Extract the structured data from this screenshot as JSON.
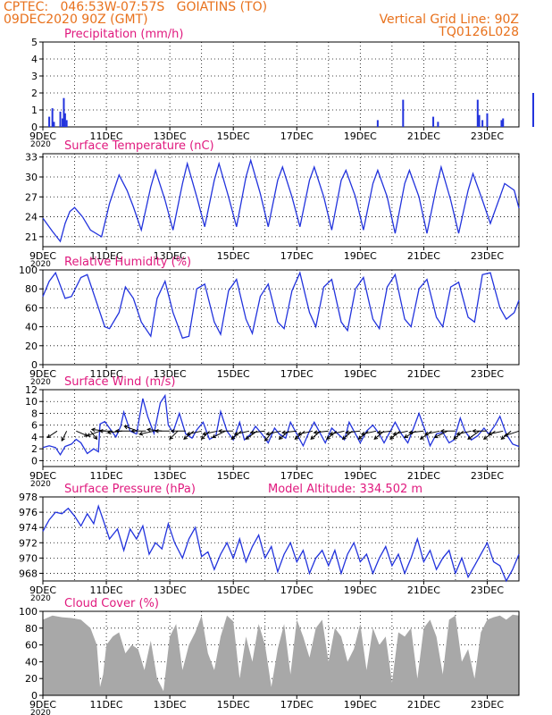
{
  "header": {
    "line1": "CPTEC:   046:53W-07:57S   GOIATINS (TO)",
    "line2": "09DEC2020 90Z (GMT)",
    "right1": "Vertical Grid Line: 90Z",
    "right2": "TQ0126L028"
  },
  "colors": {
    "header": "#e8711c",
    "title": "#e0197e",
    "series": "#2233dd",
    "cloud": "#a8a8a8",
    "arrow": "#000000",
    "grid": "#000000"
  },
  "x_ticks": [
    "9DEC",
    "11DEC",
    "13DEC",
    "15DEC",
    "17DEC",
    "19DEC",
    "21DEC",
    "23DEC"
  ],
  "x_subtick": "2020",
  "chart_data": [
    {
      "type": "bar",
      "title": "Precipitation (mm/h)",
      "ylim": [
        0,
        5
      ],
      "yticks": [
        0,
        1,
        2,
        3,
        4,
        5
      ],
      "x_days": [
        0.2,
        0.3,
        0.35,
        0.55,
        0.62,
        0.66,
        0.7,
        0.75,
        10.55,
        11.35,
        12.3,
        12.45,
        13.7,
        13.75,
        13.85,
        14.0,
        14.45,
        14.5,
        15.45
      ],
      "values": [
        0.6,
        1.1,
        0.3,
        0.9,
        0.5,
        1.7,
        0.8,
        0.4,
        0.4,
        1.6,
        0.6,
        0.3,
        1.6,
        0.7,
        0.4,
        0.8,
        0.4,
        0.5,
        2.0
      ]
    },
    {
      "type": "line",
      "title": "Surface Temperature (nC)",
      "ylim": [
        19.5,
        33.5
      ],
      "yticks": [
        21,
        24,
        27,
        30,
        33
      ],
      "x_days": [
        0.0,
        0.3,
        0.55,
        0.7,
        0.85,
        1.0,
        1.25,
        1.5,
        1.85,
        2.1,
        2.4,
        2.65,
        2.85,
        3.1,
        3.4,
        3.55,
        3.85,
        4.1,
        4.4,
        4.55,
        4.85,
        5.1,
        5.4,
        5.55,
        5.85,
        6.1,
        6.4,
        6.55,
        6.85,
        7.1,
        7.4,
        7.55,
        7.85,
        8.1,
        8.4,
        8.55,
        8.85,
        9.1,
        9.4,
        9.55,
        9.85,
        10.1,
        10.4,
        10.55,
        10.85,
        11.1,
        11.4,
        11.55,
        11.85,
        12.1,
        12.4,
        12.55,
        12.85,
        13.1,
        13.4,
        13.55,
        13.85,
        14.1,
        14.4,
        14.55,
        14.85,
        15.0
      ],
      "values": [
        23.8,
        21.8,
        20.3,
        23.0,
        24.8,
        25.4,
        24.0,
        22.0,
        21.0,
        26.0,
        30.3,
        28.0,
        25.5,
        22.0,
        28.5,
        31.0,
        26.5,
        22.0,
        29.0,
        32.0,
        27.0,
        22.5,
        29.5,
        32.0,
        27.0,
        22.5,
        30.0,
        32.5,
        27.5,
        22.5,
        29.5,
        31.5,
        27.0,
        22.5,
        29.5,
        31.5,
        27.0,
        22.0,
        29.5,
        31.0,
        27.0,
        22.0,
        29.0,
        31.0,
        27.0,
        21.5,
        29.0,
        31.0,
        27.0,
        21.5,
        28.5,
        31.5,
        26.5,
        21.5,
        28.0,
        30.5,
        26.5,
        23.0,
        27.0,
        29.0,
        28.0,
        25.3
      ]
    },
    {
      "type": "line",
      "title": "Relative Humidity (%)",
      "ylim": [
        0,
        100
      ],
      "yticks": [
        0,
        20,
        40,
        60,
        80,
        100
      ],
      "x_days": [
        0.0,
        0.2,
        0.4,
        0.7,
        0.9,
        1.2,
        1.4,
        1.7,
        1.95,
        2.1,
        2.4,
        2.6,
        2.85,
        3.1,
        3.4,
        3.6,
        3.85,
        4.1,
        4.4,
        4.6,
        4.85,
        5.1,
        5.4,
        5.6,
        5.85,
        6.1,
        6.4,
        6.6,
        6.85,
        7.1,
        7.4,
        7.6,
        7.85,
        8.1,
        8.4,
        8.6,
        8.85,
        9.1,
        9.4,
        9.6,
        9.85,
        10.1,
        10.4,
        10.6,
        10.85,
        11.1,
        11.4,
        11.6,
        11.85,
        12.1,
        12.4,
        12.6,
        12.85,
        13.1,
        13.4,
        13.6,
        13.85,
        14.1,
        14.4,
        14.6,
        14.85,
        15.0
      ],
      "values": [
        72,
        88,
        97,
        70,
        72,
        92,
        95,
        65,
        40,
        38,
        55,
        82,
        70,
        45,
        30,
        70,
        88,
        55,
        28,
        30,
        80,
        85,
        45,
        32,
        78,
        90,
        48,
        33,
        72,
        85,
        45,
        38,
        78,
        97,
        55,
        40,
        82,
        90,
        45,
        36,
        80,
        92,
        48,
        38,
        82,
        95,
        48,
        40,
        80,
        90,
        50,
        40,
        82,
        87,
        50,
        45,
        95,
        97,
        60,
        48,
        55,
        68
      ]
    },
    {
      "type": "line",
      "title": "Surface Wind (m/s)",
      "ylim": [
        -1,
        12
      ],
      "yticks": [
        0,
        2,
        4,
        6,
        8,
        10,
        12
      ],
      "x_days": [
        0.0,
        0.2,
        0.4,
        0.55,
        0.7,
        0.9,
        1.05,
        1.2,
        1.4,
        1.6,
        1.75,
        1.8,
        1.95,
        2.1,
        2.3,
        2.45,
        2.55,
        2.75,
        2.95,
        3.15,
        3.3,
        3.5,
        3.7,
        3.85,
        3.95,
        4.1,
        4.3,
        4.5,
        4.7,
        4.85,
        5.05,
        5.25,
        5.45,
        5.6,
        5.8,
        6.0,
        6.2,
        6.35,
        6.55,
        6.7,
        6.9,
        7.1,
        7.3,
        7.45,
        7.65,
        7.8,
        8.0,
        8.2,
        8.4,
        8.55,
        8.75,
        8.9,
        9.1,
        9.3,
        9.5,
        9.65,
        9.85,
        10.0,
        10.2,
        10.4,
        10.6,
        10.75,
        10.95,
        11.1,
        11.3,
        11.5,
        11.7,
        11.85,
        12.05,
        12.2,
        12.4,
        12.6,
        12.8,
        12.95,
        13.15,
        13.3,
        13.5,
        13.7,
        13.9,
        14.05,
        14.25,
        14.4,
        14.6,
        14.8,
        15.0
      ],
      "values": [
        2.2,
        2.5,
        2.2,
        1.0,
        2.4,
        2.8,
        3.6,
        3.0,
        1.2,
        2.0,
        1.5,
        6.2,
        6.6,
        5.5,
        4.0,
        5.8,
        8.2,
        5.0,
        4.5,
        10.5,
        7.5,
        4.6,
        9.8,
        11.0,
        6.0,
        4.8,
        8.0,
        4.5,
        3.8,
        5.2,
        6.5,
        3.6,
        4.2,
        8.3,
        5.0,
        3.5,
        6.5,
        3.5,
        4.5,
        5.8,
        4.5,
        3.0,
        5.5,
        4.5,
        3.8,
        6.5,
        4.5,
        2.5,
        5.0,
        6.5,
        4.5,
        3.0,
        5.5,
        4.5,
        3.5,
        6.5,
        4.5,
        3.0,
        5.0,
        6.0,
        4.5,
        3.0,
        5.0,
        6.5,
        4.5,
        3.0,
        5.8,
        8.0,
        5.0,
        2.5,
        4.5,
        4.8,
        3.0,
        3.5,
        7.2,
        5.0,
        3.5,
        4.2,
        5.5,
        4.5,
        6.0,
        7.5,
        4.5,
        2.8,
        2.4
      ],
      "arrows": {
        "x_days": [
          0.45,
          0.75,
          1.05,
          1.5,
          1.8,
          2.0,
          2.2,
          2.5,
          2.75,
          3.0,
          3.25,
          3.5,
          3.75,
          4.0,
          4.25,
          4.5,
          4.75,
          5.0,
          5.25,
          5.5,
          5.75,
          6.0,
          6.25,
          6.5,
          6.75,
          7.0,
          7.25,
          7.5,
          7.75,
          8.0,
          8.25,
          8.5,
          8.75,
          9.0,
          9.25,
          9.5,
          9.75,
          10.0,
          10.25,
          10.5,
          10.75,
          11.0,
          11.25,
          11.5,
          11.75,
          12.0,
          12.25,
          12.5,
          12.75,
          13.0,
          13.25,
          13.5,
          13.75,
          14.0,
          14.25,
          14.5,
          14.75,
          15.0
        ],
        "dx": [
          -0.6,
          -0.3,
          0.7,
          0.4,
          -0.8,
          -0.9,
          -0.8,
          -0.9,
          -0.9,
          -0.85,
          -0.9,
          -0.9,
          -0.9,
          -0.9,
          -0.5,
          -0.9,
          -0.6,
          -0.9,
          -0.5,
          -0.9,
          -0.8,
          -0.9,
          -0.6,
          -0.9,
          -0.7,
          -0.9,
          -0.5,
          -0.9,
          -0.6,
          -0.9,
          -0.6,
          -0.9,
          -0.6,
          -0.9,
          -0.6,
          -0.9,
          -0.6,
          -0.9,
          -0.6,
          -0.9,
          -0.6,
          -0.9,
          -0.6,
          -0.9,
          -0.7,
          -0.9,
          -0.7,
          -0.9,
          -0.8,
          -0.9,
          -0.6,
          -0.9,
          -0.7,
          -0.9,
          -0.7,
          -0.9,
          -0.6,
          -0.9
        ],
        "dy": [
          -0.4,
          -0.6,
          -0.3,
          -0.5,
          -0.3,
          0.1,
          0.0,
          -0.1,
          0.0,
          0.3,
          0.0,
          -0.2,
          0.1,
          0.0,
          -0.5,
          0.0,
          -0.5,
          -0.2,
          -0.5,
          -0.2,
          -0.4,
          0.0,
          -0.5,
          -0.2,
          -0.5,
          -0.1,
          -0.6,
          -0.2,
          -0.5,
          -0.1,
          -0.5,
          -0.2,
          -0.5,
          -0.1,
          -0.5,
          -0.2,
          -0.5,
          -0.1,
          -0.5,
          -0.2,
          -0.5,
          -0.1,
          -0.5,
          -0.2,
          -0.4,
          -0.1,
          -0.5,
          -0.2,
          -0.4,
          0.0,
          -0.5,
          -0.2,
          -0.5,
          0.0,
          -0.5,
          -0.2,
          -0.5,
          -0.3
        ]
      }
    },
    {
      "type": "line",
      "title": "Surface Pressure (hPa)",
      "subtitle": "Model Altitude: 334.502 m",
      "ylim": [
        967,
        978
      ],
      "yticks": [
        968,
        970,
        972,
        974,
        976,
        978
      ],
      "x_days": [
        0.0,
        0.2,
        0.4,
        0.6,
        0.8,
        1.0,
        1.2,
        1.4,
        1.6,
        1.75,
        1.9,
        2.1,
        2.35,
        2.55,
        2.75,
        2.95,
        3.15,
        3.35,
        3.55,
        3.75,
        3.95,
        4.15,
        4.4,
        4.6,
        4.8,
        5.0,
        5.2,
        5.4,
        5.6,
        5.8,
        6.0,
        6.2,
        6.4,
        6.6,
        6.8,
        7.0,
        7.2,
        7.4,
        7.6,
        7.8,
        8.0,
        8.2,
        8.4,
        8.6,
        8.8,
        9.0,
        9.2,
        9.4,
        9.6,
        9.8,
        10.0,
        10.2,
        10.4,
        10.6,
        10.8,
        11.0,
        11.2,
        11.4,
        11.6,
        11.8,
        12.0,
        12.2,
        12.4,
        12.6,
        12.8,
        13.0,
        13.2,
        13.4,
        13.6,
        13.8,
        14.0,
        14.2,
        14.4,
        14.6,
        14.8,
        15.0
      ],
      "values": [
        973.5,
        975.0,
        976.0,
        975.8,
        976.5,
        975.5,
        974.2,
        975.8,
        974.5,
        976.8,
        975.0,
        972.5,
        973.8,
        971.0,
        973.8,
        972.5,
        974.2,
        970.5,
        972.0,
        971.2,
        974.5,
        972.0,
        970.0,
        972.5,
        974.0,
        970.2,
        970.8,
        968.5,
        970.5,
        972.0,
        970.0,
        972.5,
        969.5,
        971.5,
        973.0,
        970.0,
        971.5,
        968.2,
        970.5,
        972.0,
        969.5,
        971.0,
        968.0,
        970.0,
        971.0,
        969.0,
        971.0,
        968.0,
        970.5,
        972.0,
        969.5,
        970.5,
        968.0,
        970.0,
        971.5,
        969.0,
        970.5,
        968.0,
        970.0,
        972.5,
        969.5,
        971.0,
        968.5,
        970.0,
        971.0,
        968.0,
        970.0,
        967.5,
        969.0,
        970.5,
        972.0,
        969.5,
        969.0,
        967.0,
        968.5,
        970.5
      ]
    },
    {
      "type": "area",
      "title": "Cloud Cover (%)",
      "ylim": [
        0,
        100
      ],
      "yticks": [
        0,
        20,
        40,
        60,
        80,
        100
      ],
      "x_days": [
        0.0,
        0.3,
        0.6,
        0.9,
        1.2,
        1.5,
        1.7,
        1.8,
        1.9,
        2.0,
        2.2,
        2.4,
        2.6,
        2.8,
        3.0,
        3.2,
        3.4,
        3.6,
        3.8,
        4.0,
        4.2,
        4.4,
        4.6,
        4.8,
        5.0,
        5.2,
        5.4,
        5.6,
        5.8,
        6.0,
        6.2,
        6.4,
        6.6,
        6.8,
        7.0,
        7.2,
        7.4,
        7.6,
        7.8,
        8.0,
        8.2,
        8.4,
        8.6,
        8.8,
        9.0,
        9.2,
        9.4,
        9.6,
        9.8,
        10.0,
        10.2,
        10.4,
        10.6,
        10.8,
        11.0,
        11.2,
        11.4,
        11.6,
        11.8,
        12.0,
        12.2,
        12.4,
        12.6,
        12.8,
        13.0,
        13.2,
        13.4,
        13.6,
        13.8,
        14.0,
        14.2,
        14.4,
        14.6,
        14.8,
        15.0
      ],
      "values": [
        90,
        95,
        93,
        92,
        90,
        80,
        60,
        10,
        25,
        60,
        70,
        75,
        50,
        60,
        55,
        30,
        65,
        20,
        5,
        70,
        85,
        30,
        60,
        75,
        95,
        50,
        30,
        70,
        95,
        88,
        20,
        70,
        40,
        85,
        60,
        10,
        55,
        85,
        25,
        90,
        70,
        45,
        80,
        90,
        40,
        80,
        70,
        40,
        55,
        85,
        30,
        80,
        60,
        70,
        15,
        75,
        70,
        80,
        20,
        80,
        90,
        70,
        25,
        90,
        95,
        40,
        55,
        20,
        75,
        90,
        93,
        95,
        90,
        96,
        95
      ]
    }
  ]
}
